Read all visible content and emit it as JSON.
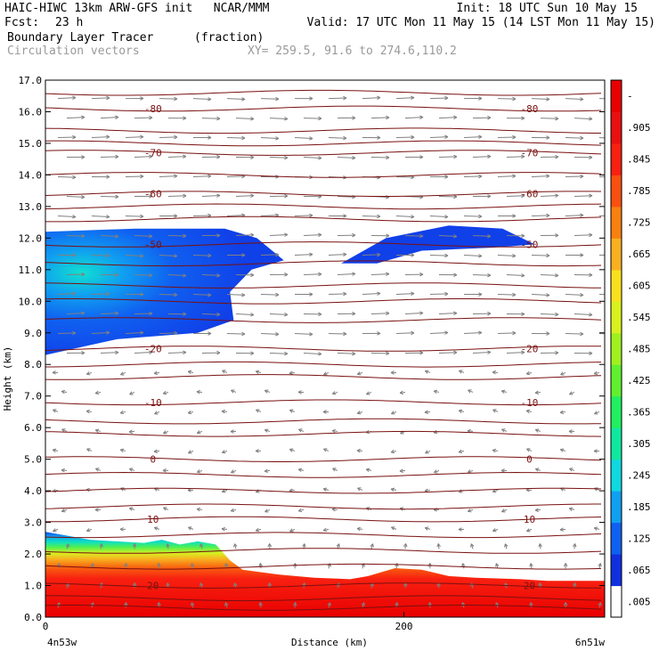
{
  "header": {
    "line1_left": "HAIC-HIWC 13km ARW-GFS init   NCAR/MMM",
    "line1_right": "Init: 18 UTC Sun 10 May 15",
    "fcst_label": "Fcst:",
    "fcst_value": "23 h",
    "valid": "Valid: 17 UTC Mon 11 May 15 (14 LST Mon 11 May 15)",
    "field_name": "Boundary Layer Tracer",
    "field_units": "(fraction)",
    "vectors_label": "Circulation vectors",
    "xy_label": "XY= 259.5, 91.6 to 274.6,110.2"
  },
  "chart_data": {
    "type": "heatmap",
    "ylabel": "Height (km)",
    "xlabel": "Distance (km)",
    "x_left_label": "4n53w",
    "x_right_label": "6n51w",
    "xlim": [
      0,
      312
    ],
    "ylim": [
      0,
      17
    ],
    "yticks": [
      "0.0",
      "1.0",
      "2.0",
      "3.0",
      "4.0",
      "5.0",
      "6.0",
      "7.0",
      "8.0",
      "9.0",
      "10.0",
      "11.0",
      "12.0",
      "13.0",
      "14.0",
      "15.0",
      "16.0",
      "17.0"
    ],
    "xticks": [
      {
        "value": 0,
        "label": "0"
      },
      {
        "value": 200,
        "label": "200"
      }
    ],
    "colorbar_labels": [
      ".005",
      ".065",
      ".125",
      ".185",
      ".245",
      ".305",
      ".365",
      ".425",
      ".485",
      ".545",
      ".605",
      ".665",
      ".725",
      ".785",
      ".845",
      ".905",
      "-"
    ],
    "colorbar_colors": [
      "#ffffff",
      "#1030e0",
      "#1060f0",
      "#10a0f0",
      "#10d8e0",
      "#10e8a0",
      "#20f060",
      "#60f030",
      "#a0f020",
      "#d8f020",
      "#f8e020",
      "#f8b020",
      "#f88010",
      "#f85010",
      "#f82010",
      "#e81010",
      "#e80000"
    ],
    "temperature_contours": [
      {
        "label": "-80",
        "height": 16.1
      },
      {
        "label": "-70",
        "height": 14.7
      },
      {
        "label": "-60",
        "height": 13.4
      },
      {
        "label": "-50",
        "height": 11.8
      },
      {
        "label": "-20",
        "height": 8.5
      },
      {
        "label": "-10",
        "height": 6.8
      },
      {
        "label": "0",
        "height": 5.0
      },
      {
        "label": "10",
        "height": 3.1
      },
      {
        "label": "20",
        "height": 1.0
      }
    ],
    "extra_contour_heights": [
      16.6,
      15.4,
      15.0,
      14.0,
      13.0,
      12.6,
      11.2,
      10.5,
      10.0,
      9.4,
      8.0,
      7.6,
      6.2,
      5.8,
      4.5,
      4.0,
      3.5,
      2.6,
      2.1,
      1.6,
      0.6,
      0.3
    ],
    "boundary_layer_top": [
      {
        "x": 0,
        "h": 2.7
      },
      {
        "x": 10,
        "h": 2.6
      },
      {
        "x": 25,
        "h": 2.45
      },
      {
        "x": 40,
        "h": 2.4
      },
      {
        "x": 55,
        "h": 2.35
      },
      {
        "x": 65,
        "h": 2.45
      },
      {
        "x": 75,
        "h": 2.3
      },
      {
        "x": 85,
        "h": 2.4
      },
      {
        "x": 95,
        "h": 2.3
      },
      {
        "x": 103,
        "h": 1.8
      },
      {
        "x": 110,
        "h": 1.5
      },
      {
        "x": 130,
        "h": 1.35
      },
      {
        "x": 150,
        "h": 1.25
      },
      {
        "x": 170,
        "h": 1.2
      },
      {
        "x": 180,
        "h": 1.3
      },
      {
        "x": 195,
        "h": 1.55
      },
      {
        "x": 210,
        "h": 1.5
      },
      {
        "x": 225,
        "h": 1.3
      },
      {
        "x": 240,
        "h": 1.25
      },
      {
        "x": 265,
        "h": 1.2
      },
      {
        "x": 280,
        "h": 1.15
      },
      {
        "x": 312,
        "h": 1.15
      }
    ],
    "anvil_left": {
      "top": [
        {
          "x": 0,
          "h": 12.2
        },
        {
          "x": 50,
          "h": 12.3
        },
        {
          "x": 100,
          "h": 12.3
        },
        {
          "x": 118,
          "h": 12.0
        },
        {
          "x": 133,
          "h": 11.3
        }
      ],
      "bottom": [
        {
          "x": 133,
          "h": 11.3
        },
        {
          "x": 115,
          "h": 11.0
        },
        {
          "x": 103,
          "h": 10.3
        },
        {
          "x": 105,
          "h": 9.4
        },
        {
          "x": 85,
          "h": 9.0
        },
        {
          "x": 40,
          "h": 8.8
        },
        {
          "x": 0,
          "h": 8.3
        }
      ]
    },
    "anvil_right": {
      "top": [
        {
          "x": 165,
          "h": 11.2
        },
        {
          "x": 190,
          "h": 12.0
        },
        {
          "x": 225,
          "h": 12.4
        },
        {
          "x": 255,
          "h": 12.3
        },
        {
          "x": 273,
          "h": 11.8
        }
      ],
      "bottom": [
        {
          "x": 273,
          "h": 11.8
        },
        {
          "x": 250,
          "h": 11.7
        },
        {
          "x": 210,
          "h": 11.6
        },
        {
          "x": 185,
          "h": 11.2
        },
        {
          "x": 165,
          "h": 11.2
        }
      ]
    },
    "grid": false,
    "legend": "right colorbar"
  }
}
